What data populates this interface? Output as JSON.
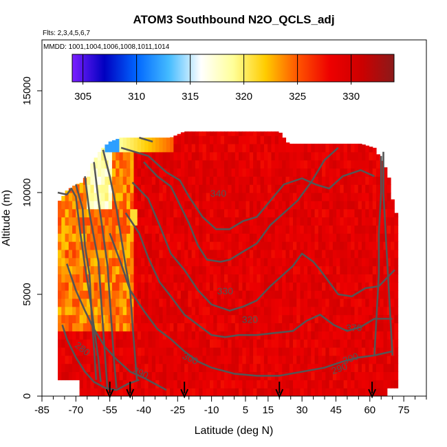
{
  "chart_data": {
    "type": "heatmap",
    "title": "ATOM3 Southbound N2O_QCLS_adj",
    "subtitle_flights": "Flts: 2,3,4,5,6,7",
    "subtitle_dates": "MMDD: 1001,1004,1006,1008,1011,1014",
    "xlabel": "Latitude (deg N)",
    "ylabel": "Altitude (m)",
    "xlim": [
      -85,
      85
    ],
    "ylim": [
      0,
      17500
    ],
    "x_ticks": [
      -85,
      -70,
      -55,
      -40,
      -25,
      -10,
      5,
      15,
      30,
      45,
      60,
      75
    ],
    "x_tick_labels": [
      "-85",
      "-70",
      "-55",
      "-40",
      "-25",
      "-10",
      "5",
      "15",
      "30",
      "45",
      "60",
      "75"
    ],
    "x_minor_ticks": [
      -80,
      -75,
      -65,
      -60,
      -50,
      -45,
      -35,
      -30,
      -20,
      -15,
      -5,
      0,
      10,
      20,
      25,
      35,
      40,
      50,
      55,
      65,
      70,
      80,
      85
    ],
    "y_ticks": [
      0,
      5000,
      10000,
      15000
    ],
    "y_tick_labels": [
      "0",
      "5000",
      "10000",
      "15000"
    ],
    "colorbar": {
      "range": [
        304,
        334
      ],
      "ticks": [
        305,
        310,
        315,
        320,
        325,
        330
      ],
      "tick_labels": [
        "305",
        "310",
        "315",
        "320",
        "325",
        "330"
      ],
      "color_stops": [
        "#7b1fff",
        "#0000c0",
        "#0066ff",
        "#44bbff",
        "#ffffff",
        "#ffff99",
        "#ffcc00",
        "#ff5500",
        "#ee0000",
        "#cc0000",
        "#8b1a1a"
      ]
    },
    "field_description_values": {
      "background_troposphere": 329,
      "polar_upper_low": 318,
      "southern_midlat_upper": 324
    },
    "contours": [
      {
        "label": "280",
        "level": 280
      },
      {
        "label": "290",
        "level": 290
      },
      {
        "label": "300",
        "level": 300
      },
      {
        "label": "320",
        "level": 320
      },
      {
        "label": "330",
        "level": 330
      },
      {
        "label": "340",
        "level": 340
      },
      {
        "label": "370",
        "level": 370
      },
      {
        "label": "290",
        "level": 290
      },
      {
        "label": "300",
        "level": 300
      }
    ],
    "sonde_arrows_lat": [
      -55,
      -46,
      -22,
      20,
      61
    ]
  }
}
